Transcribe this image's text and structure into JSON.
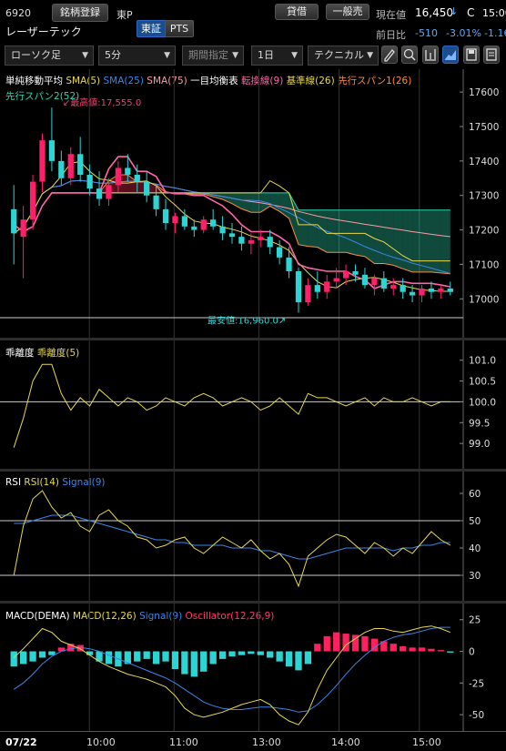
{
  "header": {
    "code": "6920",
    "watchlist_button": "銘柄登録",
    "market": "東P",
    "tabs": [
      "東証",
      "PTS"
    ],
    "name": "レーザーテック",
    "credit_badge": "貸借",
    "account_badge": "一般売",
    "price_label": "現在値",
    "price": "16,450",
    "price_arrow": "↓",
    "price_flag": "C",
    "time": "15:00",
    "change_label": "前日比",
    "change": "-510",
    "change_pct": "-3.01%",
    "change_extra": "-1.16"
  },
  "toolbar": {
    "chart_type": "ローソク足",
    "interval": "5分",
    "period": "期間指定",
    "range": "1日",
    "technical": "テクニカル",
    "icons": [
      "pen-icon",
      "zoom-icon",
      "compare-icon",
      "line-chart-icon",
      "save-icon",
      "settings-icon"
    ]
  },
  "colors": {
    "up": "#ff1f6a",
    "down": "#2dd4d4",
    "sma5": "#e8d84a",
    "sma25": "#3a86e8",
    "sma75": "#ff9aa0",
    "tenkan": "#ff66aa",
    "kijun": "#e8d84a",
    "spanA": "#ff8a3c",
    "spanB": "#2dd4b0"
  },
  "main_legend": [
    {
      "text": "単純移動平均",
      "color": "#ffffff"
    },
    {
      "text": "SMA(5)",
      "color": "#e8d84a"
    },
    {
      "text": "SMA(25)",
      "color": "#3a86e8"
    },
    {
      "text": "SMA(75)",
      "color": "#ff9aa0"
    },
    {
      "text": "一目均衡表",
      "color": "#ffffff"
    },
    {
      "text": "転換線(9)",
      "color": "#ff66aa"
    },
    {
      "text": "基準線(26)",
      "color": "#e8d84a"
    },
    {
      "text": "先行スパン1(26)",
      "color": "#ff8a3c"
    }
  ],
  "main_legend2": {
    "text": "先行スパン2(52)",
    "color": "#2dd4b0"
  },
  "annotations": {
    "high": "最高値:17,555.0",
    "low": "最安値:16,960.0"
  },
  "price_axis": [
    "17600",
    "17500",
    "17400",
    "17300",
    "17200",
    "17100",
    "17000"
  ],
  "dev_legend": [
    {
      "text": "乖離度",
      "color": "#ffffff"
    },
    {
      "text": "乖離度(5)",
      "color": "#e8d84a"
    }
  ],
  "dev_axis": [
    "101.0",
    "100.5",
    "100.0",
    "99.5",
    "99.0"
  ],
  "rsi_legend": [
    {
      "text": "RSI",
      "color": "#ffffff"
    },
    {
      "text": "RSI(14)",
      "color": "#e8d84a"
    },
    {
      "text": "Signal(9)",
      "color": "#3a86e8"
    }
  ],
  "rsi_axis": [
    "60",
    "50",
    "40",
    "30"
  ],
  "macd_legend": [
    {
      "text": "MACD(DEMA)",
      "color": "#ffffff"
    },
    {
      "text": "MACD(12,26)",
      "color": "#e8d84a"
    },
    {
      "text": "Signal(9)",
      "color": "#3a86e8"
    },
    {
      "text": "Oscillator(12,26,9)",
      "color": "#ff3c6a"
    }
  ],
  "macd_axis": [
    "25",
    "0",
    "-25",
    "-50"
  ],
  "time_axis": [
    "07/22",
    "10:00",
    "11:00",
    "13:00",
    "14:00",
    "15:00"
  ],
  "chart_data": {
    "type": "candlestick",
    "x_unit": "5min bars",
    "ylim": [
      16940,
      17640
    ],
    "candles_ohlc": [
      [
        17260,
        17330,
        17100,
        17190
      ],
      [
        17180,
        17270,
        17060,
        17230
      ],
      [
        17230,
        17360,
        17200,
        17340
      ],
      [
        17340,
        17480,
        17310,
        17460
      ],
      [
        17460,
        17555,
        17370,
        17400
      ],
      [
        17400,
        17430,
        17330,
        17350
      ],
      [
        17350,
        17440,
        17330,
        17420
      ],
      [
        17420,
        17470,
        17340,
        17360
      ],
      [
        17360,
        17390,
        17300,
        17320
      ],
      [
        17320,
        17370,
        17270,
        17290
      ],
      [
        17290,
        17350,
        17270,
        17330
      ],
      [
        17330,
        17400,
        17310,
        17380
      ],
      [
        17380,
        17420,
        17340,
        17360
      ],
      [
        17360,
        17390,
        17310,
        17340
      ],
      [
        17340,
        17370,
        17280,
        17300
      ],
      [
        17300,
        17330,
        17240,
        17260
      ],
      [
        17260,
        17290,
        17200,
        17220
      ],
      [
        17220,
        17250,
        17190,
        17240
      ],
      [
        17240,
        17260,
        17200,
        17210
      ],
      [
        17210,
        17230,
        17180,
        17200
      ],
      [
        17200,
        17240,
        17190,
        17230
      ],
      [
        17230,
        17260,
        17200,
        17210
      ],
      [
        17210,
        17240,
        17170,
        17190
      ],
      [
        17190,
        17220,
        17160,
        17180
      ],
      [
        17180,
        17210,
        17140,
        17160
      ],
      [
        17160,
        17190,
        17130,
        17170
      ],
      [
        17170,
        17200,
        17150,
        17180
      ],
      [
        17180,
        17200,
        17130,
        17150
      ],
      [
        17150,
        17170,
        17100,
        17120
      ],
      [
        17120,
        17150,
        17060,
        17080
      ],
      [
        17080,
        17090,
        16960,
        16990
      ],
      [
        16990,
        17060,
        16980,
        17040
      ],
      [
        17040,
        17080,
        17000,
        17020
      ],
      [
        17020,
        17070,
        17000,
        17050
      ],
      [
        17050,
        17090,
        17030,
        17060
      ],
      [
        17060,
        17100,
        17040,
        17080
      ],
      [
        17080,
        17100,
        17050,
        17070
      ],
      [
        17070,
        17090,
        17030,
        17040
      ],
      [
        17040,
        17070,
        17010,
        17060
      ],
      [
        17060,
        17080,
        17020,
        17030
      ],
      [
        17030,
        17060,
        17010,
        17040
      ],
      [
        17040,
        17060,
        17000,
        17020
      ],
      [
        17020,
        17040,
        16990,
        17010
      ],
      [
        17010,
        17040,
        16990,
        17030
      ],
      [
        17030,
        17050,
        17000,
        17020
      ],
      [
        17020,
        17040,
        17000,
        17030
      ],
      [
        17030,
        17050,
        17010,
        17020
      ]
    ],
    "deviation": [
      98.9,
      99.6,
      100.5,
      100.9,
      100.9,
      100.2,
      99.8,
      100.1,
      99.9,
      100.3,
      100.1,
      99.9,
      100.1,
      100.0,
      99.8,
      99.9,
      100.1,
      100.0,
      99.9,
      100.1,
      100.2,
      100.1,
      99.9,
      100.0,
      100.1,
      100.0,
      99.8,
      99.9,
      100.1,
      99.9,
      99.7,
      100.2,
      100.1,
      100.1,
      100.0,
      99.9,
      100.0,
      100.1,
      99.9,
      100.1,
      100.0,
      100.0,
      100.1,
      100.0,
      99.9,
      100.0,
      100.0
    ],
    "rsi": [
      30,
      48,
      58,
      61,
      55,
      51,
      53,
      48,
      46,
      52,
      54,
      50,
      48,
      44,
      43,
      40,
      41,
      43,
      44,
      40,
      38,
      41,
      44,
      42,
      40,
      43,
      39,
      36,
      38,
      34,
      26,
      37,
      40,
      43,
      45,
      44,
      41,
      38,
      42,
      40,
      37,
      40,
      38,
      42,
      46,
      43,
      41
    ],
    "rsi_signal": [
      49,
      49,
      50,
      51,
      52,
      52,
      52,
      51,
      50,
      49,
      48,
      47,
      46,
      45,
      44,
      43,
      43,
      42,
      42,
      41,
      41,
      41,
      41,
      40,
      40,
      40,
      39,
      39,
      38,
      37,
      36,
      36,
      37,
      38,
      39,
      40,
      40,
      40,
      40,
      40,
      39,
      40,
      40,
      41,
      41,
      42,
      42
    ],
    "macd": [
      -5,
      2,
      10,
      18,
      15,
      8,
      5,
      2,
      -3,
      -8,
      -12,
      -15,
      -18,
      -20,
      -22,
      -25,
      -28,
      -35,
      -45,
      -50,
      -52,
      -50,
      -48,
      -45,
      -42,
      -40,
      -38,
      -42,
      -50,
      -55,
      -58,
      -48,
      -30,
      -15,
      -5,
      5,
      10,
      15,
      18,
      18,
      16,
      15,
      17,
      19,
      20,
      18,
      15
    ],
    "macd_signal": [
      -30,
      -25,
      -18,
      -10,
      -4,
      0,
      2,
      3,
      2,
      0,
      -3,
      -6,
      -9,
      -12,
      -15,
      -18,
      -21,
      -25,
      -30,
      -35,
      -40,
      -43,
      -45,
      -46,
      -46,
      -45,
      -44,
      -44,
      -45,
      -46,
      -48,
      -47,
      -42,
      -35,
      -27,
      -18,
      -10,
      -3,
      3,
      8,
      11,
      13,
      14,
      16,
      18,
      19,
      19
    ],
    "oscillator": [
      -12,
      -10,
      -8,
      -5,
      -3,
      3,
      6,
      5,
      -3,
      -8,
      -10,
      -12,
      -10,
      -8,
      -6,
      -10,
      -8,
      -14,
      -18,
      -20,
      -16,
      -10,
      -6,
      -4,
      -3,
      -2,
      -3,
      -5,
      -8,
      -12,
      -15,
      -10,
      6,
      12,
      15,
      14,
      13,
      12,
      10,
      8,
      6,
      4,
      3,
      3,
      2,
      1,
      -1
    ]
  }
}
